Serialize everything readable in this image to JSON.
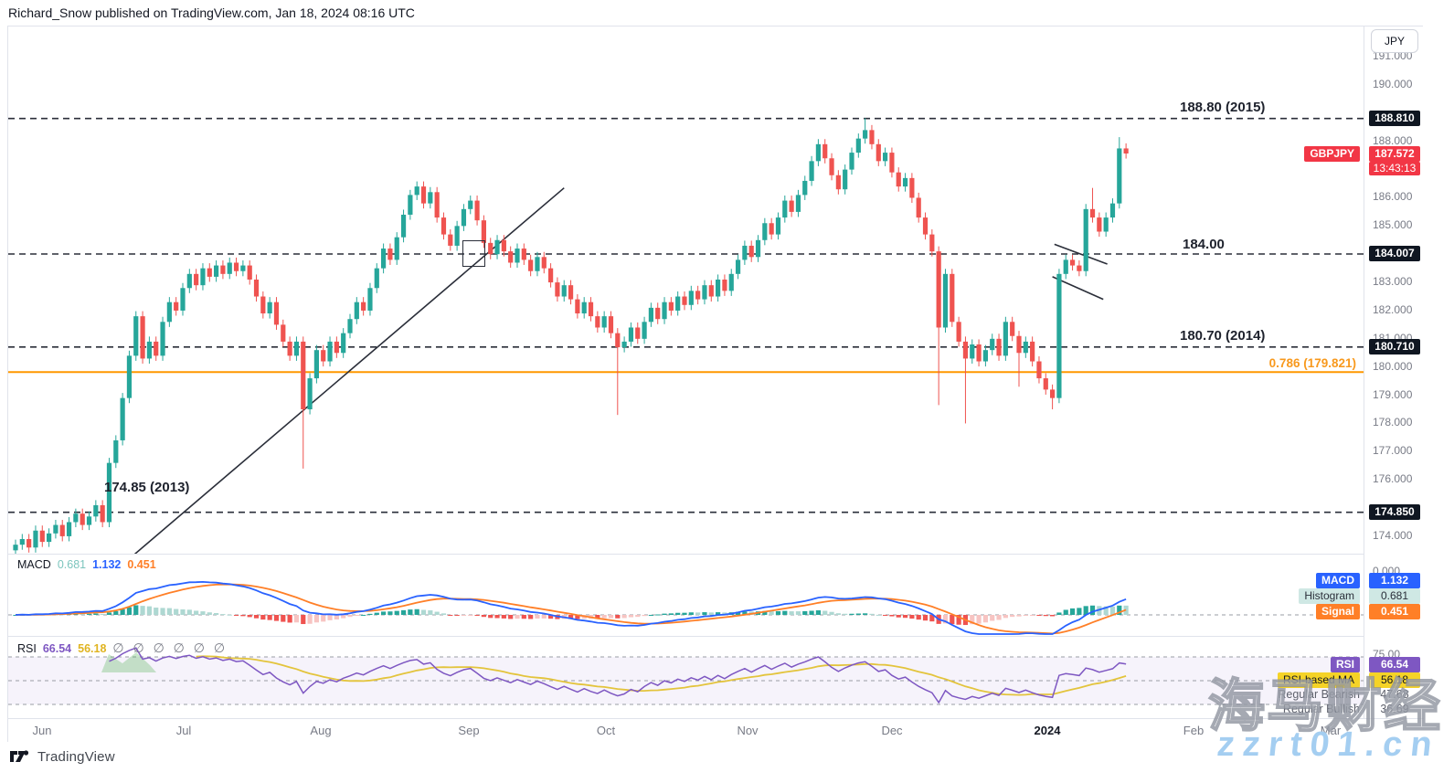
{
  "header": {
    "byline": "Richard_Snow published on TradingView.com, Jan 18, 2024 08:16 UTC"
  },
  "watermark": {
    "cn_text": "海马财经",
    "site_text": "zzrt01.cn",
    "site_color": "#a4cef1"
  },
  "logo": {
    "brand": "TradingView"
  },
  "axis": {
    "currency_button": "JPY",
    "price_ticks": [
      "191.000",
      "190.000",
      "188.000",
      "186.000",
      "185.000",
      "183.000",
      "182.000",
      "181.000",
      "180.000",
      "179.000",
      "178.000",
      "177.000",
      "176.000",
      "174.000"
    ],
    "macd_zero_tick": "0.000",
    "rsi_top_tick": "75.00",
    "time_labels": [
      "Jun",
      "Jul",
      "Aug",
      "Sep",
      "Oct",
      "Nov",
      "Dec",
      "2024",
      "Feb",
      "Mar"
    ]
  },
  "price_pane": {
    "badges": {
      "level_2015": "188.810",
      "symbol": "GBPJPY",
      "last_price": "187.572",
      "countdown": "13:43:13",
      "level_184": "184.007",
      "level_2014": "180.710",
      "level_2013": "174.850"
    }
  },
  "macd_pane": {
    "legend_title": "MACD",
    "legend_hist": "0.681",
    "legend_macd": "1.132",
    "legend_signal": "0.451",
    "badge_macd_label": "MACD",
    "badge_macd_value": "1.132",
    "badge_hist_label": "Histogram",
    "badge_hist_value": "0.681",
    "badge_signal_label": "Signal",
    "badge_signal_value": "0.451"
  },
  "rsi_pane": {
    "legend_title": "RSI",
    "legend_rsi": "66.54",
    "legend_ma": "56.18",
    "divergence_icons": "∅ ∅ ∅ ∅ ∅ ∅",
    "badge_rsi_label": "RSI",
    "badge_rsi_value": "66.54",
    "badge_ma_label": "RSI-based MA",
    "badge_ma_value": "56.18",
    "row_bearish_label": "Regular Bearish",
    "row_bearish_value": "47.68",
    "row_bullish_label": "Regular Bullish",
    "row_bullish_value": "36.69"
  },
  "chart_data": {
    "type": "candlestick",
    "symbol": "GBPJPY",
    "quote_currency": "JPY",
    "timeframe": "daily",
    "x_range_months": [
      "Jun",
      "Jul",
      "Aug",
      "Sep",
      "Oct",
      "Nov",
      "Dec",
      "2024",
      "Feb",
      "Mar"
    ],
    "y_range": [
      173.4,
      191.5
    ],
    "last_price": 187.572,
    "first_open": 173.5,
    "closes": [
      173.7,
      173.9,
      173.6,
      174.2,
      173.8,
      174.1,
      174.4,
      174.0,
      174.5,
      174.8,
      174.4,
      174.7,
      175.1,
      174.5,
      176.6,
      177.4,
      178.9,
      180.4,
      181.8,
      180.3,
      180.9,
      180.4,
      181.6,
      182.3,
      182.0,
      182.8,
      183.3,
      182.9,
      183.5,
      183.2,
      183.6,
      183.3,
      183.7,
      183.4,
      183.6,
      183.1,
      182.5,
      181.9,
      182.3,
      181.5,
      180.9,
      180.4,
      180.9,
      178.5,
      179.6,
      180.6,
      180.2,
      180.9,
      180.5,
      181.2,
      181.7,
      182.3,
      182.0,
      182.8,
      183.5,
      184.2,
      183.8,
      184.6,
      185.4,
      186.1,
      186.4,
      185.8,
      186.2,
      185.3,
      184.7,
      184.3,
      185.0,
      185.6,
      185.9,
      185.2,
      184.4,
      184.0,
      184.5,
      184.1,
      183.7,
      184.2,
      183.8,
      183.4,
      183.9,
      183.5,
      183.0,
      182.5,
      182.9,
      182.4,
      181.9,
      182.3,
      181.8,
      181.4,
      181.8,
      181.2,
      180.7,
      180.9,
      181.4,
      181.0,
      181.6,
      182.1,
      181.7,
      182.3,
      182.0,
      182.5,
      182.2,
      182.7,
      182.4,
      182.9,
      182.5,
      183.1,
      182.7,
      183.3,
      183.8,
      184.3,
      183.9,
      184.5,
      185.1,
      184.7,
      185.3,
      185.9,
      185.5,
      186.1,
      186.6,
      187.3,
      187.9,
      187.4,
      186.8,
      186.3,
      187.0,
      187.6,
      188.1,
      188.4,
      187.9,
      187.3,
      187.6,
      186.9,
      186.4,
      186.7,
      186.0,
      185.3,
      184.7,
      184.1,
      181.4,
      183.3,
      181.6,
      180.9,
      180.3,
      180.8,
      180.2,
      180.6,
      181.0,
      180.4,
      181.6,
      181.1,
      180.5,
      180.9,
      180.2,
      179.6,
      179.2,
      178.9,
      183.3,
      183.8,
      183.6,
      183.4,
      185.6,
      185.3,
      184.8,
      185.3,
      185.8,
      187.75,
      187.57
    ],
    "wick_overrides": {
      "43": {
        "low": 176.4
      },
      "90": {
        "low": 178.3
      },
      "127": {
        "high": 188.82
      },
      "138": {
        "low": 178.65
      },
      "142": {
        "low": 178.0
      },
      "150": {
        "low": 179.3
      },
      "155": {
        "low": 178.5
      },
      "161": {
        "high": 186.35
      },
      "165": {
        "high": 188.15
      }
    },
    "annotations": {
      "levels": [
        {
          "price": 188.81,
          "label": "188.80 (2015)",
          "style": "dashed"
        },
        {
          "price": 184.007,
          "label": "184.00",
          "style": "dashed"
        },
        {
          "price": 180.71,
          "label": "180.70 (2014)",
          "style": "dashed"
        },
        {
          "price": 174.85,
          "label": "174.85 (2013)",
          "style": "dashed"
        },
        {
          "price": 179.821,
          "label": "0.786 (179.821)",
          "style": "solid-orange"
        }
      ],
      "trendline": {
        "from_idx": 17,
        "from_price": 173.2,
        "to_idx": 82,
        "to_price": 186.35
      },
      "channel": [
        {
          "x1_idx": 155.3,
          "p1": 184.35,
          "x2_idx": 163.2,
          "p2": 183.65
        },
        {
          "x1_idx": 155.0,
          "p1": 183.2,
          "x2_idx": 162.6,
          "p2": 182.4
        }
      ],
      "box": {
        "note": "small rectangle drawn around early-Sep candle near 184.0"
      }
    },
    "indicators": {
      "macd": {
        "fast": 12,
        "slow": 26,
        "signal_len": 9,
        "displayed": {
          "macd": 1.132,
          "histogram": 0.681,
          "signal": 0.451
        }
      },
      "rsi": {
        "length": 14,
        "bands": [
          75,
          50,
          25
        ],
        "displayed": {
          "rsi": 66.54,
          "rsi_based_ma": 56.18,
          "regular_bearish": 47.68,
          "regular_bullish": 36.69
        }
      }
    }
  },
  "colors": {
    "up": "#26a69a",
    "down": "#ef5350",
    "macd_line": "#2962ff",
    "signal_line": "#ff7f27",
    "hist_pos": "#26a69a",
    "hist_pos_weak": "#aed8d2",
    "hist_neg": "#ef5350",
    "hist_neg_weak": "#f7c4c2",
    "rsi_line": "#7e57c2",
    "rsi_ma_line": "#e3c43c",
    "level_line": "#2a2e39",
    "fib_line": "#ff9800",
    "fib_text": "#f8991d",
    "badge_dark": "#0f1621",
    "badge_red": "#f23645",
    "badge_blue": "#2962ff",
    "badge_orange": "#ff7f27",
    "badge_teal": "#cfe8e4",
    "badge_teal_text": "#2a2e39",
    "badge_purple": "#7e57c2",
    "badge_yellow": "#f5d327"
  }
}
